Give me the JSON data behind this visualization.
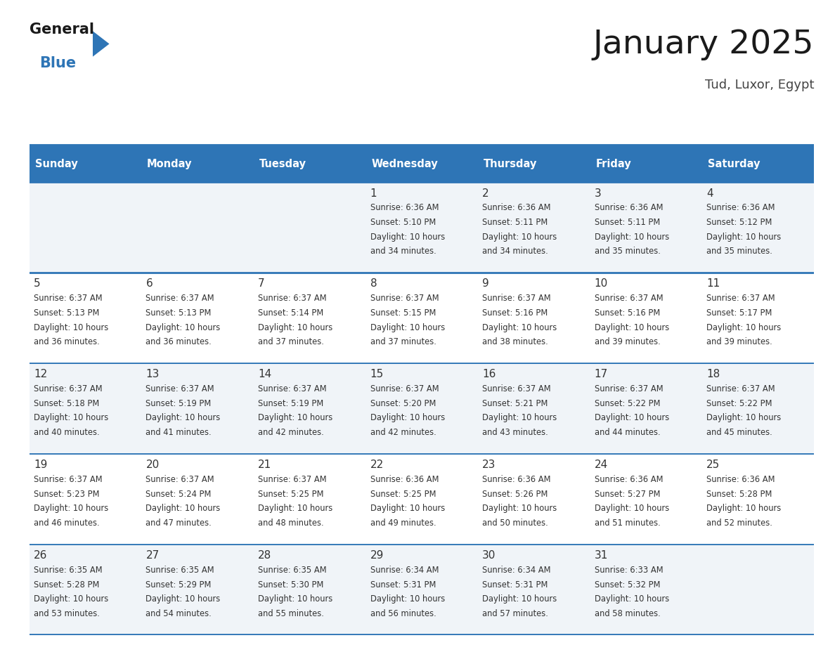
{
  "title": "January 2025",
  "subtitle": "Tud, Luxor, Egypt",
  "header_bg": "#2E75B6",
  "header_text_color": "#FFFFFF",
  "day_names": [
    "Sunday",
    "Monday",
    "Tuesday",
    "Wednesday",
    "Thursday",
    "Friday",
    "Saturday"
  ],
  "row_colors": [
    "#F0F4F8",
    "#FFFFFF"
  ],
  "border_color": "#2E75B6",
  "text_color": "#333333",
  "num_rows": 5,
  "num_cols": 7,
  "calendar_data": [
    [
      {
        "day": "",
        "lines": []
      },
      {
        "day": "",
        "lines": []
      },
      {
        "day": "",
        "lines": []
      },
      {
        "day": "1",
        "lines": [
          "Sunrise: 6:36 AM",
          "Sunset: 5:10 PM",
          "Daylight: 10 hours",
          "and 34 minutes."
        ]
      },
      {
        "day": "2",
        "lines": [
          "Sunrise: 6:36 AM",
          "Sunset: 5:11 PM",
          "Daylight: 10 hours",
          "and 34 minutes."
        ]
      },
      {
        "day": "3",
        "lines": [
          "Sunrise: 6:36 AM",
          "Sunset: 5:11 PM",
          "Daylight: 10 hours",
          "and 35 minutes."
        ]
      },
      {
        "day": "4",
        "lines": [
          "Sunrise: 6:36 AM",
          "Sunset: 5:12 PM",
          "Daylight: 10 hours",
          "and 35 minutes."
        ]
      }
    ],
    [
      {
        "day": "5",
        "lines": [
          "Sunrise: 6:37 AM",
          "Sunset: 5:13 PM",
          "Daylight: 10 hours",
          "and 36 minutes."
        ]
      },
      {
        "day": "6",
        "lines": [
          "Sunrise: 6:37 AM",
          "Sunset: 5:13 PM",
          "Daylight: 10 hours",
          "and 36 minutes."
        ]
      },
      {
        "day": "7",
        "lines": [
          "Sunrise: 6:37 AM",
          "Sunset: 5:14 PM",
          "Daylight: 10 hours",
          "and 37 minutes."
        ]
      },
      {
        "day": "8",
        "lines": [
          "Sunrise: 6:37 AM",
          "Sunset: 5:15 PM",
          "Daylight: 10 hours",
          "and 37 minutes."
        ]
      },
      {
        "day": "9",
        "lines": [
          "Sunrise: 6:37 AM",
          "Sunset: 5:16 PM",
          "Daylight: 10 hours",
          "and 38 minutes."
        ]
      },
      {
        "day": "10",
        "lines": [
          "Sunrise: 6:37 AM",
          "Sunset: 5:16 PM",
          "Daylight: 10 hours",
          "and 39 minutes."
        ]
      },
      {
        "day": "11",
        "lines": [
          "Sunrise: 6:37 AM",
          "Sunset: 5:17 PM",
          "Daylight: 10 hours",
          "and 39 minutes."
        ]
      }
    ],
    [
      {
        "day": "12",
        "lines": [
          "Sunrise: 6:37 AM",
          "Sunset: 5:18 PM",
          "Daylight: 10 hours",
          "and 40 minutes."
        ]
      },
      {
        "day": "13",
        "lines": [
          "Sunrise: 6:37 AM",
          "Sunset: 5:19 PM",
          "Daylight: 10 hours",
          "and 41 minutes."
        ]
      },
      {
        "day": "14",
        "lines": [
          "Sunrise: 6:37 AM",
          "Sunset: 5:19 PM",
          "Daylight: 10 hours",
          "and 42 minutes."
        ]
      },
      {
        "day": "15",
        "lines": [
          "Sunrise: 6:37 AM",
          "Sunset: 5:20 PM",
          "Daylight: 10 hours",
          "and 42 minutes."
        ]
      },
      {
        "day": "16",
        "lines": [
          "Sunrise: 6:37 AM",
          "Sunset: 5:21 PM",
          "Daylight: 10 hours",
          "and 43 minutes."
        ]
      },
      {
        "day": "17",
        "lines": [
          "Sunrise: 6:37 AM",
          "Sunset: 5:22 PM",
          "Daylight: 10 hours",
          "and 44 minutes."
        ]
      },
      {
        "day": "18",
        "lines": [
          "Sunrise: 6:37 AM",
          "Sunset: 5:22 PM",
          "Daylight: 10 hours",
          "and 45 minutes."
        ]
      }
    ],
    [
      {
        "day": "19",
        "lines": [
          "Sunrise: 6:37 AM",
          "Sunset: 5:23 PM",
          "Daylight: 10 hours",
          "and 46 minutes."
        ]
      },
      {
        "day": "20",
        "lines": [
          "Sunrise: 6:37 AM",
          "Sunset: 5:24 PM",
          "Daylight: 10 hours",
          "and 47 minutes."
        ]
      },
      {
        "day": "21",
        "lines": [
          "Sunrise: 6:37 AM",
          "Sunset: 5:25 PM",
          "Daylight: 10 hours",
          "and 48 minutes."
        ]
      },
      {
        "day": "22",
        "lines": [
          "Sunrise: 6:36 AM",
          "Sunset: 5:25 PM",
          "Daylight: 10 hours",
          "and 49 minutes."
        ]
      },
      {
        "day": "23",
        "lines": [
          "Sunrise: 6:36 AM",
          "Sunset: 5:26 PM",
          "Daylight: 10 hours",
          "and 50 minutes."
        ]
      },
      {
        "day": "24",
        "lines": [
          "Sunrise: 6:36 AM",
          "Sunset: 5:27 PM",
          "Daylight: 10 hours",
          "and 51 minutes."
        ]
      },
      {
        "day": "25",
        "lines": [
          "Sunrise: 6:36 AM",
          "Sunset: 5:28 PM",
          "Daylight: 10 hours",
          "and 52 minutes."
        ]
      }
    ],
    [
      {
        "day": "26",
        "lines": [
          "Sunrise: 6:35 AM",
          "Sunset: 5:28 PM",
          "Daylight: 10 hours",
          "and 53 minutes."
        ]
      },
      {
        "day": "27",
        "lines": [
          "Sunrise: 6:35 AM",
          "Sunset: 5:29 PM",
          "Daylight: 10 hours",
          "and 54 minutes."
        ]
      },
      {
        "day": "28",
        "lines": [
          "Sunrise: 6:35 AM",
          "Sunset: 5:30 PM",
          "Daylight: 10 hours",
          "and 55 minutes."
        ]
      },
      {
        "day": "29",
        "lines": [
          "Sunrise: 6:34 AM",
          "Sunset: 5:31 PM",
          "Daylight: 10 hours",
          "and 56 minutes."
        ]
      },
      {
        "day": "30",
        "lines": [
          "Sunrise: 6:34 AM",
          "Sunset: 5:31 PM",
          "Daylight: 10 hours",
          "and 57 minutes."
        ]
      },
      {
        "day": "31",
        "lines": [
          "Sunrise: 6:33 AM",
          "Sunset: 5:32 PM",
          "Daylight: 10 hours",
          "and 58 minutes."
        ]
      },
      {
        "day": "",
        "lines": []
      }
    ]
  ]
}
